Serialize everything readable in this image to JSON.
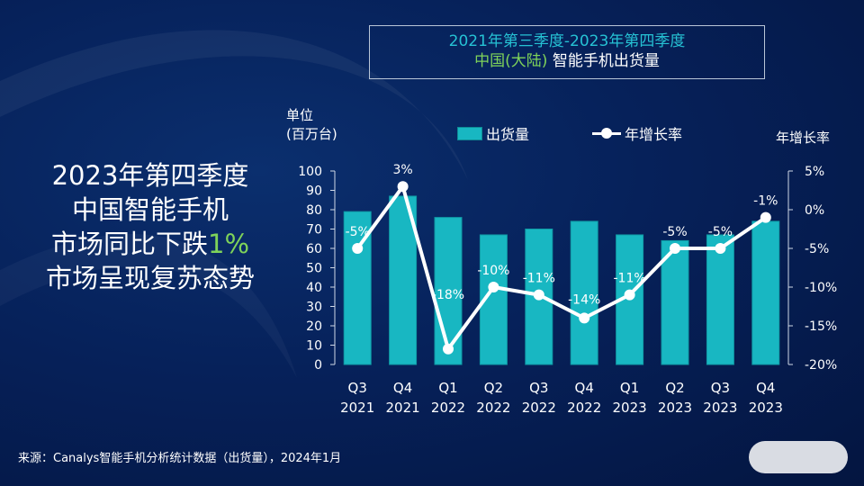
{
  "title": {
    "line1": "2021年第三季度-2023年第四季度",
    "line2_green": "中国(大陆)",
    "line2_white": " 智能手机出货量"
  },
  "headline": {
    "line1": "2023年第四季度",
    "line2": "中国智能手机",
    "line3_prefix": "市场同比下跌",
    "line3_highlight": "1%",
    "line4": "市场呈现复苏态势"
  },
  "unit_label": {
    "line1": "单位",
    "line2": "(百万台)"
  },
  "right_axis_label": "年增长率",
  "legend": {
    "bars": "出货量",
    "line": "年增长率"
  },
  "source": "来源：Canalys智能手机分析统计数据（出货量），2024年1月",
  "colors": {
    "bar": "#18b7c2",
    "line": "#ffffff",
    "title_accent": "#26c2d4",
    "green_accent": "#7fd35a"
  },
  "chart_data": {
    "type": "bar",
    "categories": [
      [
        "Q3",
        "2021"
      ],
      [
        "Q4",
        "2021"
      ],
      [
        "Q1",
        "2022"
      ],
      [
        "Q2",
        "2022"
      ],
      [
        "Q3",
        "2022"
      ],
      [
        "Q4",
        "2022"
      ],
      [
        "Q1",
        "2023"
      ],
      [
        "Q2",
        "2023"
      ],
      [
        "Q3",
        "2023"
      ],
      [
        "Q4",
        "2023"
      ]
    ],
    "series": [
      {
        "name": "出货量",
        "type": "bar",
        "axis": "left",
        "values": [
          79,
          87,
          76,
          67,
          70,
          74,
          67,
          64,
          67,
          74
        ]
      },
      {
        "name": "年增长率",
        "type": "line",
        "axis": "right",
        "values": [
          -5,
          3,
          -18,
          -10,
          -11,
          -14,
          -11,
          -5,
          -5,
          -1
        ],
        "labels": [
          "-5%",
          "3%",
          "-18%",
          "-10%",
          "-11%",
          "-14%",
          "-11%",
          "-5%",
          "-5%",
          "-1%"
        ]
      }
    ],
    "left_axis": {
      "min": 0,
      "max": 100,
      "step": 10
    },
    "right_axis": {
      "min": -20,
      "max": 5,
      "ticks": [
        5,
        0,
        -5,
        -10,
        -15,
        -20
      ],
      "tick_labels": [
        "5%",
        "0%",
        "-5%",
        "-10%",
        "-15%",
        "-20%"
      ]
    },
    "grid": false,
    "legend_position": "top"
  }
}
